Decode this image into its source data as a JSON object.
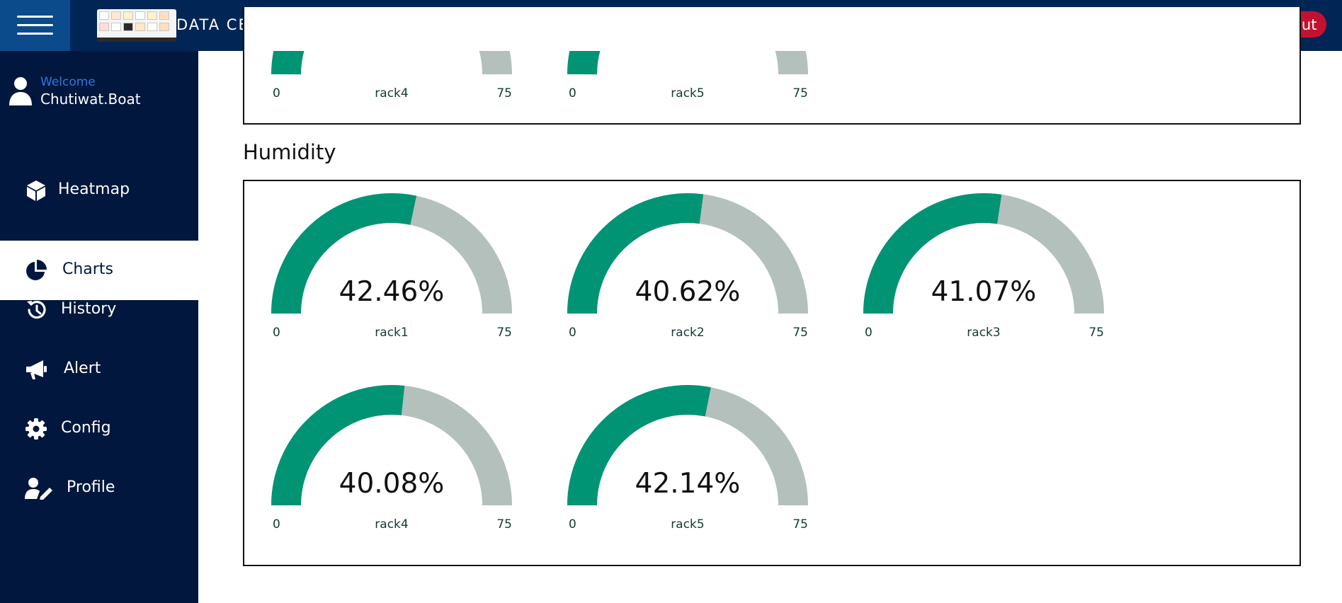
{
  "header": {
    "title": "DATA CENTER MONITORING DASHBOARD",
    "logout_label": "Logout"
  },
  "user": {
    "welcome": "Welcome",
    "name": "Chutiwat.Boat"
  },
  "sidebar": {
    "items": [
      {
        "label": "Heatmap",
        "icon": "cube-icon",
        "active": false
      },
      {
        "label": "Charts",
        "icon": "pie-chart-icon",
        "active": true
      },
      {
        "label": "History",
        "icon": "history-icon",
        "active": false
      },
      {
        "label": "Alert",
        "icon": "megaphone-icon",
        "active": false
      },
      {
        "label": "Config",
        "icon": "gear-icon",
        "active": false
      },
      {
        "label": "Profile",
        "icon": "user-edit-icon",
        "active": false
      }
    ]
  },
  "colors": {
    "gauge_fill": "#009474",
    "gauge_track": "#b4c0bc",
    "header_bg": "#012656",
    "sidebar_bg": "#01173d",
    "logout_bg": "#c4112f"
  },
  "temperature_partial": {
    "gauges": [
      {
        "label": "rack4",
        "min": "0",
        "max": "75"
      },
      {
        "label": "rack5",
        "min": "0",
        "max": "75"
      }
    ]
  },
  "humidity": {
    "title": "Humidity",
    "gauges": [
      {
        "label": "rack1",
        "value": 42.46,
        "display": "42.46%",
        "min": "0",
        "max": "75"
      },
      {
        "label": "rack2",
        "value": 40.62,
        "display": "40.62%",
        "min": "0",
        "max": "75"
      },
      {
        "label": "rack3",
        "value": 41.07,
        "display": "41.07%",
        "min": "0",
        "max": "75"
      },
      {
        "label": "rack4",
        "value": 40.08,
        "display": "40.08%",
        "min": "0",
        "max": "75"
      },
      {
        "label": "rack5",
        "value": 42.14,
        "display": "42.14%",
        "min": "0",
        "max": "75"
      }
    ]
  }
}
